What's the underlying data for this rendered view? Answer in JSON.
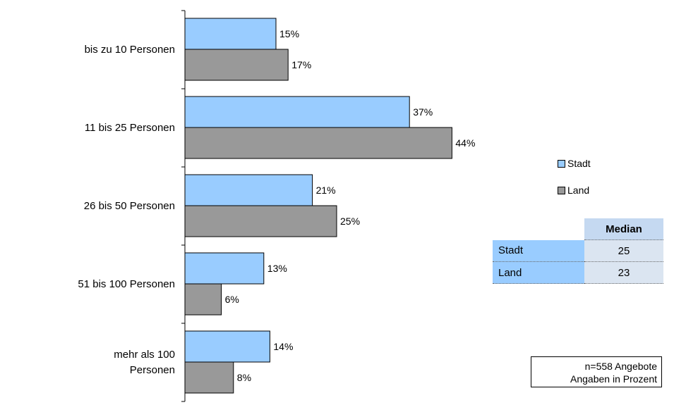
{
  "chart_data": {
    "type": "bar",
    "orientation": "horizontal",
    "categories": [
      [
        "bis zu 10 Personen"
      ],
      [
        "11 bis 25 Personen"
      ],
      [
        "26 bis 50 Personen"
      ],
      [
        "51 bis 100 Personen"
      ],
      [
        "mehr als 100",
        "Personen"
      ]
    ],
    "series": [
      {
        "name": "Stadt",
        "values": [
          15,
          37,
          21,
          13,
          14
        ],
        "labels": [
          "15%",
          "37%",
          "21%",
          "13%",
          "14%"
        ],
        "color": "#99ccff"
      },
      {
        "name": "Land",
        "values": [
          17,
          44,
          25,
          6,
          8
        ],
        "labels": [
          "17%",
          "44%",
          "25%",
          "6%",
          "8%"
        ],
        "color": "#999999"
      }
    ],
    "xlim": [
      0,
      100
    ],
    "grid": false,
    "legend_position": "right"
  },
  "legend": {
    "items": [
      {
        "name": "Stadt",
        "color": "#99ccff"
      },
      {
        "name": "Land",
        "color": "#999999"
      }
    ]
  },
  "median_table": {
    "header": "Median",
    "rows": [
      {
        "name": "Stadt",
        "value": "25"
      },
      {
        "name": "Land",
        "value": "23"
      }
    ]
  },
  "note": {
    "line1": "n=558 Angebote",
    "line2": "Angaben in Prozent"
  }
}
